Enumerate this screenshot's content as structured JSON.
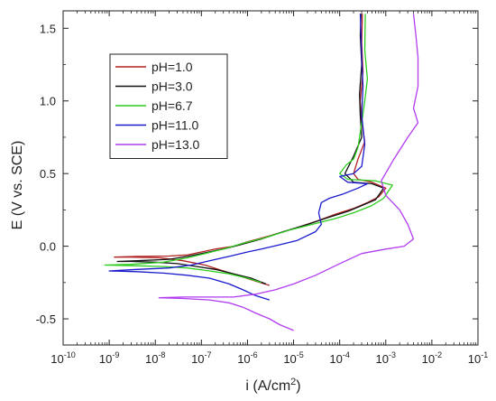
{
  "chart_data": {
    "type": "line",
    "xlabel": "i (A/cm²)",
    "xlabel_base": "i (A/cm",
    "xlabel_sup": "2",
    "xlabel_tail": ")",
    "ylabel": "E (V vs. SCE)",
    "xscale": "log",
    "xlim": [
      1e-10,
      0.1
    ],
    "ylim": [
      -0.68,
      1.62
    ],
    "x_ticks": [
      1e-10,
      1e-09,
      1e-08,
      1e-07,
      1e-06,
      1e-05,
      0.0001,
      0.001,
      0.01,
      0.1
    ],
    "x_tick_labels": [
      "-10",
      "-9",
      "-8",
      "-7",
      "-6",
      "-5",
      "-4",
      "-3",
      "-2",
      "-1"
    ],
    "y_ticks": [
      -0.5,
      0.0,
      0.5,
      1.0,
      1.5
    ],
    "y_tick_labels": [
      "-0.5",
      "0.0",
      "0.5",
      "1.0",
      "1.5"
    ],
    "grid": false,
    "legend_position": "top-left",
    "series": [
      {
        "name": "pH=1.0",
        "color": "#b22222",
        "points": [
          [
            3e-06,
            -0.27
          ],
          [
            1.5e-06,
            -0.24
          ],
          [
            6e-07,
            -0.2
          ],
          [
            3e-07,
            -0.17
          ],
          [
            1.2e-07,
            -0.13
          ],
          [
            4e-08,
            -0.1
          ],
          [
            1.3e-08,
            -0.08
          ],
          [
            3e-09,
            -0.075
          ],
          [
            1.3e-09,
            -0.075
          ],
          [
            4e-09,
            -0.07
          ],
          [
            2e-08,
            -0.068
          ],
          [
            5e-08,
            -0.06
          ],
          [
            1e-07,
            -0.04
          ],
          [
            2e-07,
            -0.02
          ],
          [
            5e-07,
            0.0
          ],
          [
            1e-06,
            0.03
          ],
          [
            3e-06,
            0.07
          ],
          [
            1e-05,
            0.12
          ],
          [
            3e-05,
            0.17
          ],
          [
            8e-05,
            0.22
          ],
          [
            0.0002,
            0.26
          ],
          [
            0.0004,
            0.3
          ],
          [
            0.0007,
            0.34
          ],
          [
            0.001,
            0.4
          ],
          [
            0.0005,
            0.44
          ],
          [
            0.00025,
            0.46
          ],
          [
            0.0002,
            0.5
          ],
          [
            0.00025,
            0.6
          ],
          [
            0.00035,
            0.72
          ],
          [
            0.0003,
            0.85
          ],
          [
            0.00028,
            1.0
          ],
          [
            0.00032,
            1.2
          ],
          [
            0.0003,
            1.4
          ],
          [
            0.00031,
            1.6
          ]
        ]
      },
      {
        "name": "pH=3.0",
        "color": "#111111",
        "points": [
          [
            2.5e-06,
            -0.26
          ],
          [
            1.2e-06,
            -0.22
          ],
          [
            5e-07,
            -0.19
          ],
          [
            2e-07,
            -0.16
          ],
          [
            8e-08,
            -0.14
          ],
          [
            3e-08,
            -0.12
          ],
          [
            1e-08,
            -0.11
          ],
          [
            3e-09,
            -0.105
          ],
          [
            1.5e-09,
            -0.105
          ],
          [
            4e-09,
            -0.1
          ],
          [
            2e-08,
            -0.09
          ],
          [
            5e-08,
            -0.07
          ],
          [
            1e-07,
            -0.05
          ],
          [
            3e-07,
            -0.02
          ],
          [
            7e-07,
            0.01
          ],
          [
            2e-06,
            0.05
          ],
          [
            6e-06,
            0.1
          ],
          [
            2e-05,
            0.15
          ],
          [
            6e-05,
            0.2
          ],
          [
            0.00015,
            0.24
          ],
          [
            0.0003,
            0.28
          ],
          [
            0.0006,
            0.32
          ],
          [
            0.0009,
            0.4
          ],
          [
            0.0005,
            0.43
          ],
          [
            0.0002,
            0.44
          ],
          [
            0.00013,
            0.5
          ],
          [
            0.0002,
            0.62
          ],
          [
            0.0003,
            0.75
          ],
          [
            0.00028,
            0.9
          ],
          [
            0.00027,
            1.05
          ],
          [
            0.0003,
            1.25
          ],
          [
            0.00028,
            1.45
          ],
          [
            0.00029,
            1.6
          ]
        ]
      },
      {
        "name": "pH=6.7",
        "color": "#2ecc1f",
        "points": [
          [
            2e-06,
            -0.25
          ],
          [
            1e-06,
            -0.22
          ],
          [
            4e-07,
            -0.19
          ],
          [
            1.5e-07,
            -0.17
          ],
          [
            5e-08,
            -0.15
          ],
          [
            1.5e-08,
            -0.14
          ],
          [
            4e-09,
            -0.135
          ],
          [
            8e-10,
            -0.13
          ],
          [
            3e-09,
            -0.125
          ],
          [
            1.5e-08,
            -0.11
          ],
          [
            5e-08,
            -0.08
          ],
          [
            1.2e-07,
            -0.05
          ],
          [
            3e-07,
            -0.02
          ],
          [
            8e-07,
            0.02
          ],
          [
            2.5e-06,
            0.06
          ],
          [
            8e-06,
            0.11
          ],
          [
            2.5e-05,
            0.15
          ],
          [
            8e-05,
            0.19
          ],
          [
            0.0002,
            0.23
          ],
          [
            0.0005,
            0.28
          ],
          [
            0.0009,
            0.33
          ],
          [
            0.0014,
            0.42
          ],
          [
            0.0006,
            0.45
          ],
          [
            0.00015,
            0.46
          ],
          [
            0.0001,
            0.5
          ],
          [
            0.00014,
            0.56
          ],
          [
            0.0002,
            0.6
          ],
          [
            0.00025,
            0.68
          ],
          [
            0.0003,
            0.85
          ],
          [
            0.00035,
            1.0
          ],
          [
            0.0004,
            1.15
          ],
          [
            0.00035,
            1.35
          ],
          [
            0.00036,
            1.6
          ]
        ]
      },
      {
        "name": "pH=11.0",
        "color": "#1a1acd",
        "points": [
          [
            3e-06,
            -0.37
          ],
          [
            1.5e-06,
            -0.34
          ],
          [
            8e-07,
            -0.3
          ],
          [
            4e-07,
            -0.26
          ],
          [
            1.5e-07,
            -0.22
          ],
          [
            5e-08,
            -0.2
          ],
          [
            1.5e-08,
            -0.185
          ],
          [
            4e-09,
            -0.175
          ],
          [
            1e-09,
            -0.17
          ],
          [
            4e-09,
            -0.16
          ],
          [
            2e-08,
            -0.15
          ],
          [
            6e-08,
            -0.13
          ],
          [
            1.5e-07,
            -0.1
          ],
          [
            4e-07,
            -0.07
          ],
          [
            1e-06,
            -0.04
          ],
          [
            2e-06,
            -0.02
          ],
          [
            5e-06,
            0.01
          ],
          [
            1.2e-05,
            0.04
          ],
          [
            3e-05,
            0.1
          ],
          [
            4e-05,
            0.15
          ],
          [
            3.5e-05,
            0.23
          ],
          [
            4e-05,
            0.3
          ],
          [
            6e-05,
            0.33
          ],
          [
            0.00012,
            0.36
          ],
          [
            0.00025,
            0.4
          ],
          [
            0.0004,
            0.43
          ],
          [
            0.00015,
            0.44
          ],
          [
            0.0001,
            0.48
          ],
          [
            0.0002,
            0.5
          ],
          [
            0.0003,
            0.55
          ],
          [
            0.00035,
            0.7
          ],
          [
            0.0003,
            0.9
          ],
          [
            0.00032,
            1.1
          ],
          [
            0.0003,
            1.3
          ],
          [
            0.00028,
            1.6
          ]
        ]
      },
      {
        "name": "pH=13.0",
        "color": "#b23cf0",
        "points": [
          [
            1e-05,
            -0.58
          ],
          [
            5e-06,
            -0.54
          ],
          [
            3e-06,
            -0.5
          ],
          [
            1.5e-06,
            -0.46
          ],
          [
            8e-07,
            -0.42
          ],
          [
            4e-07,
            -0.39
          ],
          [
            1.5e-07,
            -0.37
          ],
          [
            4e-08,
            -0.36
          ],
          [
            1.2e-08,
            -0.355
          ],
          [
            4e-08,
            -0.35
          ],
          [
            1.5e-07,
            -0.35
          ],
          [
            5e-07,
            -0.35
          ],
          [
            1.5e-06,
            -0.33
          ],
          [
            4e-06,
            -0.3
          ],
          [
            1e-05,
            -0.26
          ],
          [
            3e-05,
            -0.2
          ],
          [
            0.0001,
            -0.12
          ],
          [
            0.0003,
            -0.05
          ],
          [
            0.001,
            -0.02
          ],
          [
            0.0025,
            0.0
          ],
          [
            0.004,
            0.05
          ],
          [
            0.003,
            0.15
          ],
          [
            0.002,
            0.25
          ],
          [
            0.001,
            0.35
          ],
          [
            0.0008,
            0.45
          ],
          [
            0.0015,
            0.6
          ],
          [
            0.003,
            0.75
          ],
          [
            0.005,
            0.85
          ],
          [
            0.004,
            0.95
          ],
          [
            0.005,
            1.1
          ],
          [
            0.005,
            1.3
          ],
          [
            0.0045,
            1.45
          ],
          [
            0.004,
            1.6
          ]
        ]
      }
    ]
  }
}
